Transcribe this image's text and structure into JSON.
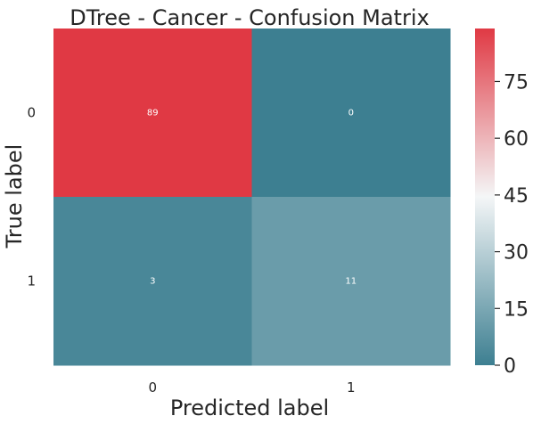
{
  "chart_data": {
    "type": "heatmap",
    "title": "DTree - Cancer - Confusion Matrix",
    "xlabel": "Predicted label",
    "ylabel": "True label",
    "x_categories": [
      "0",
      "1"
    ],
    "y_categories": [
      "0",
      "1"
    ],
    "values": [
      [
        89,
        0
      ],
      [
        3,
        11
      ]
    ],
    "cell_labels": [
      [
        "89",
        "0"
      ],
      [
        "3",
        "11"
      ]
    ],
    "colorbar": {
      "vmin": 0,
      "vmax": 89,
      "ticks": [
        0,
        15,
        30,
        45,
        60,
        75
      ],
      "tick_labels": [
        "0",
        "15",
        "30",
        "45",
        "60",
        "75"
      ],
      "colors": [
        "#3d7f91",
        "#f4f6f7",
        "#e03944"
      ]
    },
    "grid": false
  }
}
